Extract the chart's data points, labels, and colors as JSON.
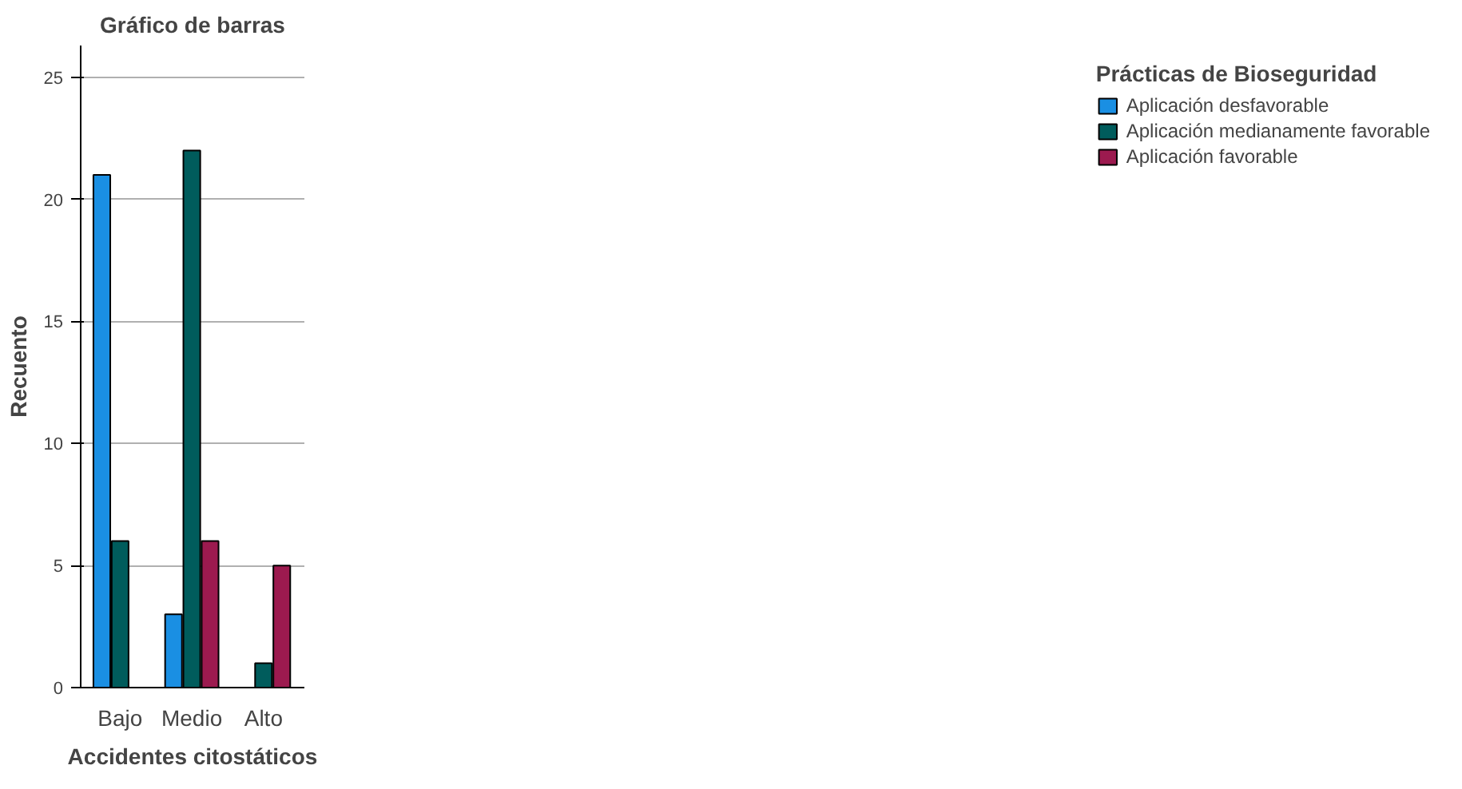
{
  "chart_data": {
    "type": "bar",
    "title": "Gráfico de barras",
    "xlabel": "Accidentes citostáticos",
    "ylabel": "Recuento",
    "legend_title": "Prácticas de Bioseguridad",
    "categories": [
      "Bajo",
      "Medio",
      "Alto"
    ],
    "series": [
      {
        "name": "Aplicación desfavorable",
        "color": "#1a8fe3",
        "values": [
          21,
          3,
          null
        ]
      },
      {
        "name": "Aplicación medianamente favorable",
        "color": "#005c5c",
        "values": [
          6,
          22,
          1
        ]
      },
      {
        "name": "Aplicación favorable",
        "color": "#9c1a4f",
        "values": [
          null,
          6,
          5
        ]
      }
    ],
    "ylim": [
      0,
      26.3
    ],
    "yticks": [
      0,
      5,
      10,
      15,
      20,
      25
    ],
    "grid": "y",
    "legend": "right"
  }
}
